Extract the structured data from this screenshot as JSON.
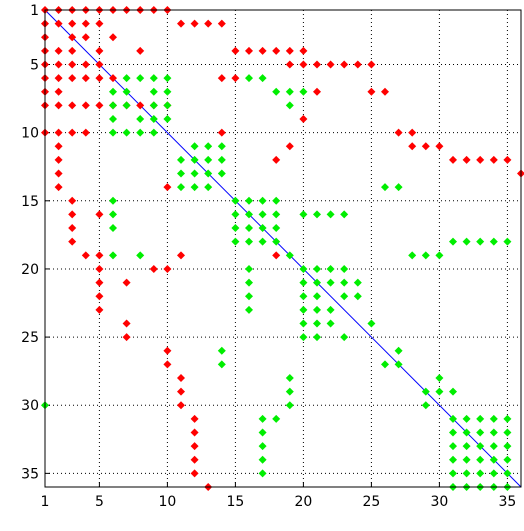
{
  "chart_data": {
    "type": "scatter",
    "title": "",
    "xlabel": "",
    "ylabel": "",
    "xlim": [
      1,
      36
    ],
    "ylim": [
      1,
      36
    ],
    "y_inverted": true,
    "grid": true,
    "legend": "none",
    "xticks": [
      "1",
      "5",
      "10",
      "15",
      "20",
      "25",
      "30",
      "35"
    ],
    "yticks": [
      "1",
      "5",
      "10",
      "15",
      "20",
      "25",
      "30",
      "35"
    ],
    "diagonal": {
      "from": [
        1,
        1
      ],
      "to": [
        36,
        36
      ],
      "color": "#0000ff"
    },
    "series": [
      {
        "color": "#ff0000",
        "points": [
          [
            1,
            1
          ],
          [
            2,
            1
          ],
          [
            3,
            1
          ],
          [
            4,
            1
          ],
          [
            5,
            1
          ],
          [
            6,
            1
          ],
          [
            7,
            1
          ],
          [
            8,
            1
          ],
          [
            9,
            1
          ],
          [
            10,
            1
          ],
          [
            1,
            2
          ],
          [
            2,
            2
          ],
          [
            3,
            2
          ],
          [
            4,
            2
          ],
          [
            5,
            2
          ],
          [
            11,
            2
          ],
          [
            12,
            2
          ],
          [
            13,
            2
          ],
          [
            14,
            2
          ],
          [
            1,
            3
          ],
          [
            3,
            3
          ],
          [
            4,
            3
          ],
          [
            6,
            3
          ],
          [
            1,
            4
          ],
          [
            2,
            4
          ],
          [
            3,
            4
          ],
          [
            5,
            4
          ],
          [
            8,
            4
          ],
          [
            15,
            4
          ],
          [
            16,
            4
          ],
          [
            17,
            4
          ],
          [
            18,
            4
          ],
          [
            19,
            4
          ],
          [
            20,
            4
          ],
          [
            1,
            5
          ],
          [
            2,
            5
          ],
          [
            3,
            5
          ],
          [
            4,
            5
          ],
          [
            5,
            5
          ],
          [
            19,
            5
          ],
          [
            20,
            5
          ],
          [
            21,
            5
          ],
          [
            22,
            5
          ],
          [
            23,
            5
          ],
          [
            24,
            5
          ],
          [
            25,
            5
          ],
          [
            1,
            6
          ],
          [
            2,
            6
          ],
          [
            3,
            6
          ],
          [
            4,
            6
          ],
          [
            5,
            6
          ],
          [
            6,
            6
          ],
          [
            14,
            6
          ],
          [
            15,
            6
          ],
          [
            1,
            7
          ],
          [
            2,
            7
          ],
          [
            21,
            7
          ],
          [
            25,
            7
          ],
          [
            26,
            7
          ],
          [
            1,
            8
          ],
          [
            2,
            8
          ],
          [
            3,
            8
          ],
          [
            4,
            8
          ],
          [
            5,
            8
          ],
          [
            6,
            8
          ],
          [
            7,
            8
          ],
          [
            8,
            8
          ],
          [
            9,
            8
          ],
          [
            10,
            8
          ],
          [
            20,
            9
          ],
          [
            1,
            10
          ],
          [
            2,
            10
          ],
          [
            3,
            10
          ],
          [
            4,
            10
          ],
          [
            14,
            10
          ],
          [
            27,
            10
          ],
          [
            28,
            10
          ],
          [
            2,
            11
          ],
          [
            19,
            11
          ],
          [
            28,
            11
          ],
          [
            29,
            11
          ],
          [
            30,
            11
          ],
          [
            2,
            12
          ],
          [
            18,
            12
          ],
          [
            31,
            12
          ],
          [
            32,
            12
          ],
          [
            33,
            12
          ],
          [
            34,
            12
          ],
          [
            35,
            12
          ],
          [
            2,
            13
          ],
          [
            36,
            13
          ],
          [
            2,
            14
          ],
          [
            10,
            14
          ],
          [
            3,
            15
          ],
          [
            3,
            16
          ],
          [
            5,
            16
          ],
          [
            3,
            17
          ],
          [
            3,
            18
          ],
          [
            4,
            19
          ],
          [
            5,
            19
          ],
          [
            11,
            19
          ],
          [
            18,
            19
          ],
          [
            5,
            20
          ],
          [
            9,
            20
          ],
          [
            10,
            20
          ],
          [
            5,
            21
          ],
          [
            7,
            21
          ],
          [
            5,
            22
          ],
          [
            5,
            23
          ],
          [
            7,
            24
          ],
          [
            7,
            25
          ],
          [
            10,
            26
          ],
          [
            10,
            27
          ],
          [
            11,
            28
          ],
          [
            11,
            29
          ],
          [
            11,
            30
          ],
          [
            12,
            31
          ],
          [
            12,
            32
          ],
          [
            12,
            33
          ],
          [
            12,
            34
          ],
          [
            12,
            35
          ],
          [
            13,
            36
          ]
        ]
      },
      {
        "color": "#00ee00",
        "points": [
          [
            7,
            6
          ],
          [
            8,
            6
          ],
          [
            9,
            6
          ],
          [
            10,
            6
          ],
          [
            16,
            6
          ],
          [
            17,
            6
          ],
          [
            6,
            7
          ],
          [
            7,
            7
          ],
          [
            9,
            7
          ],
          [
            10,
            7
          ],
          [
            18,
            7
          ],
          [
            19,
            7
          ],
          [
            20,
            7
          ],
          [
            6,
            8
          ],
          [
            7,
            8
          ],
          [
            9,
            8
          ],
          [
            10,
            8
          ],
          [
            19,
            8
          ],
          [
            6,
            9
          ],
          [
            8,
            9
          ],
          [
            9,
            9
          ],
          [
            10,
            9
          ],
          [
            6,
            10
          ],
          [
            7,
            10
          ],
          [
            8,
            10
          ],
          [
            9,
            10
          ],
          [
            12,
            11
          ],
          [
            13,
            11
          ],
          [
            14,
            11
          ],
          [
            11,
            12
          ],
          [
            12,
            12
          ],
          [
            13,
            12
          ],
          [
            14,
            12
          ],
          [
            11,
            13
          ],
          [
            12,
            13
          ],
          [
            13,
            13
          ],
          [
            14,
            13
          ],
          [
            11,
            14
          ],
          [
            12,
            14
          ],
          [
            13,
            14
          ],
          [
            26,
            14
          ],
          [
            27,
            14
          ],
          [
            6,
            15
          ],
          [
            15,
            15
          ],
          [
            16,
            15
          ],
          [
            17,
            15
          ],
          [
            18,
            15
          ],
          [
            6,
            16
          ],
          [
            15,
            16
          ],
          [
            16,
            16
          ],
          [
            17,
            16
          ],
          [
            18,
            16
          ],
          [
            20,
            16
          ],
          [
            21,
            16
          ],
          [
            22,
            16
          ],
          [
            23,
            16
          ],
          [
            6,
            17
          ],
          [
            15,
            17
          ],
          [
            16,
            17
          ],
          [
            17,
            17
          ],
          [
            18,
            17
          ],
          [
            15,
            18
          ],
          [
            16,
            18
          ],
          [
            17,
            18
          ],
          [
            18,
            18
          ],
          [
            31,
            18
          ],
          [
            32,
            18
          ],
          [
            33,
            18
          ],
          [
            34,
            18
          ],
          [
            35,
            18
          ],
          [
            6,
            19
          ],
          [
            8,
            19
          ],
          [
            19,
            19
          ],
          [
            28,
            19
          ],
          [
            29,
            19
          ],
          [
            30,
            19
          ],
          [
            16,
            20
          ],
          [
            20,
            20
          ],
          [
            21,
            20
          ],
          [
            22,
            20
          ],
          [
            23,
            20
          ],
          [
            16,
            21
          ],
          [
            20,
            21
          ],
          [
            21,
            21
          ],
          [
            22,
            21
          ],
          [
            23,
            21
          ],
          [
            24,
            21
          ],
          [
            16,
            22
          ],
          [
            20,
            22
          ],
          [
            21,
            22
          ],
          [
            23,
            22
          ],
          [
            24,
            22
          ],
          [
            16,
            23
          ],
          [
            20,
            23
          ],
          [
            21,
            23
          ],
          [
            22,
            23
          ],
          [
            20,
            24
          ],
          [
            21,
            24
          ],
          [
            22,
            24
          ],
          [
            25,
            24
          ],
          [
            20,
            25
          ],
          [
            21,
            25
          ],
          [
            23,
            25
          ],
          [
            14,
            26
          ],
          [
            27,
            26
          ],
          [
            14,
            27
          ],
          [
            26,
            27
          ],
          [
            27,
            27
          ],
          [
            19,
            28
          ],
          [
            30,
            28
          ],
          [
            19,
            29
          ],
          [
            29,
            29
          ],
          [
            30,
            29
          ],
          [
            31,
            29
          ],
          [
            19,
            30
          ],
          [
            29,
            30
          ],
          [
            1,
            30
          ],
          [
            31,
            31
          ],
          [
            32,
            31
          ],
          [
            33,
            31
          ],
          [
            34,
            31
          ],
          [
            35,
            31
          ],
          [
            17,
            31
          ],
          [
            18,
            31
          ],
          [
            17,
            32
          ],
          [
            31,
            32
          ],
          [
            32,
            32
          ],
          [
            33,
            32
          ],
          [
            34,
            32
          ],
          [
            35,
            32
          ],
          [
            17,
            33
          ],
          [
            31,
            33
          ],
          [
            32,
            33
          ],
          [
            33,
            33
          ],
          [
            34,
            33
          ],
          [
            35,
            33
          ],
          [
            17,
            34
          ],
          [
            31,
            34
          ],
          [
            32,
            34
          ],
          [
            33,
            34
          ],
          [
            34,
            34
          ],
          [
            35,
            34
          ],
          [
            17,
            35
          ],
          [
            31,
            35
          ],
          [
            32,
            35
          ],
          [
            33,
            35
          ],
          [
            34,
            35
          ],
          [
            35,
            35
          ],
          [
            31,
            36
          ],
          [
            32,
            36
          ],
          [
            33,
            36
          ],
          [
            34,
            36
          ],
          [
            35,
            36
          ]
        ]
      }
    ]
  }
}
